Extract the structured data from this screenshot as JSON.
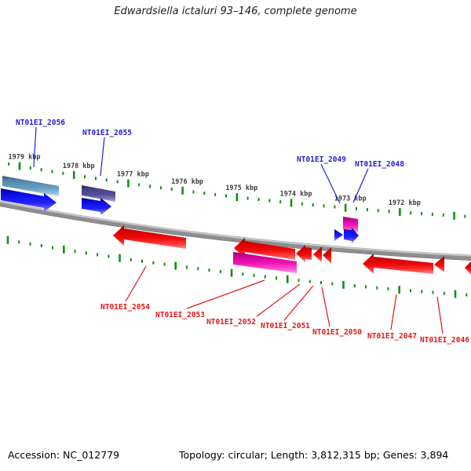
{
  "title": "Edwardsiella ictaluri 93–146, complete genome",
  "ruler": {
    "unit_labels": [
      "1979 kbp",
      "1978 kbp",
      "1977 kbp",
      "1976 kbp",
      "1975 kbp",
      "1974 kbp",
      "1973 kbp",
      "1972 kbp"
    ],
    "tick_color": "#0c930c"
  },
  "gene_labels": {
    "forward_color": "#2020d8",
    "reverse_color": "#e81414",
    "forward": [
      {
        "text": "NT01EI_2056"
      },
      {
        "text": "NT01EI_2055"
      },
      {
        "text": "NT01EI_2049"
      },
      {
        "text": "NT01EI_2048"
      }
    ],
    "reverse": [
      {
        "text": "NT01EI_2054"
      },
      {
        "text": "NT01EI_2053"
      },
      {
        "text": "NT01EI_2052"
      },
      {
        "text": "NT01EI_2051"
      },
      {
        "text": "NT01EI_2050"
      },
      {
        "text": "NT01EI_2047"
      },
      {
        "text": "NT01EI_2046"
      }
    ]
  },
  "features": [
    {
      "name": "gene-box-steelblue",
      "label": "NT01EI_2056",
      "strand": "forward",
      "fill": "#4f86ad"
    },
    {
      "name": "gene-arrow-blue-1",
      "label": "",
      "strand": "forward",
      "fill": "#1414e8"
    },
    {
      "name": "gene-box-darkslate",
      "label": "NT01EI_2055",
      "strand": "forward",
      "fill": "#4a4494"
    },
    {
      "name": "gene-arrow-blue-2",
      "label": "",
      "strand": "forward",
      "fill": "#1414e8"
    },
    {
      "name": "gene-box-magenta-small",
      "label": "",
      "strand": "forward",
      "fill": "#ee18b0"
    },
    {
      "name": "gene-arrow-blue-2049",
      "label": "NT01EI_2049",
      "strand": "forward",
      "fill": "#1414e8"
    },
    {
      "name": "gene-arrow-blue-2048",
      "label": "NT01EI_2048",
      "strand": "forward",
      "fill": "#1414e8"
    },
    {
      "name": "gene-arrow-red-2054",
      "label": "NT01EI_2054",
      "strand": "reverse",
      "fill": "#e81010"
    },
    {
      "name": "gene-arrow-red-b",
      "label": "",
      "strand": "reverse",
      "fill": "#e81010"
    },
    {
      "name": "gene-box-magenta-2053",
      "label": "NT01EI_2053",
      "strand": "reverse",
      "fill": "#ee18b0"
    },
    {
      "name": "gene-arrow-red-2052",
      "label": "NT01EI_2052",
      "strand": "reverse",
      "fill": "#e81010"
    },
    {
      "name": "gene-arrow-red-2051",
      "label": "NT01EI_2051",
      "strand": "reverse",
      "fill": "#e81010"
    },
    {
      "name": "gene-arrow-red-2050",
      "label": "NT01EI_2050",
      "strand": "reverse",
      "fill": "#e81010"
    },
    {
      "name": "gene-arrow-red-2047",
      "label": "NT01EI_2047",
      "strand": "reverse",
      "fill": "#e81010"
    },
    {
      "name": "gene-arrow-red-2046",
      "label": "NT01EI_2046",
      "strand": "reverse",
      "fill": "#e81010"
    },
    {
      "name": "gene-arrow-red-edge",
      "label": "",
      "strand": "reverse",
      "fill": "#e81010"
    }
  ],
  "backbone_color": "#8e8e8e",
  "footer": {
    "accession": "Accession: NC_012779",
    "topology": "Topology: circular; Length: 3,812,315 bp; Genes: 3,894"
  }
}
